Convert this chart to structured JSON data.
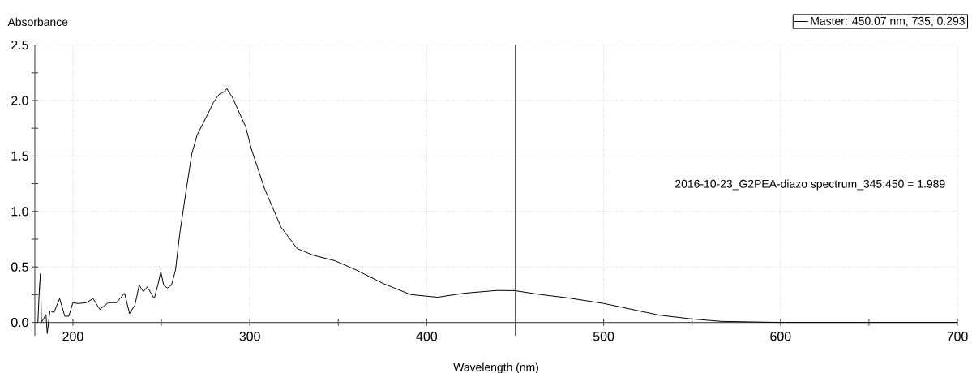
{
  "chart_data": {
    "type": "line",
    "xlabel": "Wavelength (nm)",
    "ylabel": "Absorbance",
    "annotations": [
      "2016-10-23_G2PEA-diazo spectrum_345:450 = 1.989"
    ],
    "series": [
      {
        "name": "Master: 450.07 nm, 735, 0.293",
        "color": "#000000",
        "x": [
          180.2,
          181.1,
          181.7,
          182.2,
          184.8,
          185.5,
          187,
          189.3,
          192.5,
          195.4,
          197.7,
          200,
          203,
          207.6,
          211.4,
          215.2,
          220,
          224.6,
          229.2,
          232,
          235,
          237.5,
          239.8,
          242,
          246,
          248,
          249.7,
          251.3,
          253.4,
          255.7,
          258,
          260.3,
          264.1,
          267.2,
          270.2,
          274.9,
          279.4,
          282.5,
          285.5,
          287,
          290.1,
          293.9,
          297.7,
          300.8,
          308.4,
          317.6,
          326.8,
          335.9,
          348.1,
          360.3,
          375.6,
          390.9,
          406.1,
          421.4,
          439.7,
          449.8,
          464.3,
          479.4,
          500,
          531.6,
          550,
          566.6,
          600,
          650,
          700
        ],
        "values": [
          0,
          0.32,
          0.44,
          0,
          0.07,
          -0.1,
          0.105,
          0.09,
          0.215,
          0.056,
          0.056,
          0.178,
          0.17,
          0.178,
          0.215,
          0.117,
          0.178,
          0.178,
          0.263,
          0.08,
          0.153,
          0.336,
          0.276,
          0.32,
          0.215,
          0.336,
          0.458,
          0.336,
          0.31,
          0.336,
          0.47,
          0.787,
          1.2,
          1.518,
          1.689,
          1.835,
          1.981,
          2.054,
          2.079,
          2.108,
          2.03,
          1.896,
          1.762,
          1.567,
          1.202,
          0.86,
          0.665,
          0.605,
          0.556,
          0.471,
          0.349,
          0.251,
          0.227,
          0.263,
          0.288,
          0.286,
          0.251,
          0.222,
          0.171,
          0.065,
          0.031,
          0.009,
          0,
          0,
          0
        ]
      }
    ],
    "xlim": [
      178.5,
      700
    ],
    "ylim": [
      -0.12,
      2.5
    ],
    "xticks": [
      200,
      {
        "value": 250,
        "label": null
      },
      300,
      {
        "value": 350,
        "label": null
      },
      400,
      {
        "value": 450,
        "label": null
      },
      500,
      {
        "value": 550,
        "label": null
      },
      600,
      {
        "value": 650,
        "label": null
      },
      700
    ],
    "yticks": [
      {
        "value": 0,
        "label": "0.0"
      },
      {
        "value": 0.25,
        "label": null
      },
      {
        "value": 0.5,
        "label": "0.5"
      },
      {
        "value": 0.75,
        "label": null
      },
      {
        "value": 1,
        "label": "1.0"
      },
      {
        "value": 1.25,
        "label": null
      },
      {
        "value": 1.5,
        "label": "1.5"
      },
      {
        "value": 1.75,
        "label": null
      },
      {
        "value": 2,
        "label": "2.0"
      },
      {
        "value": 2.25,
        "label": null
      },
      {
        "value": 2.5,
        "label": "2.5"
      }
    ],
    "ref_lines": [
      {
        "axis": "x",
        "value": 450.07,
        "color": "#555555"
      }
    ],
    "grid": true,
    "legend": "top right"
  }
}
